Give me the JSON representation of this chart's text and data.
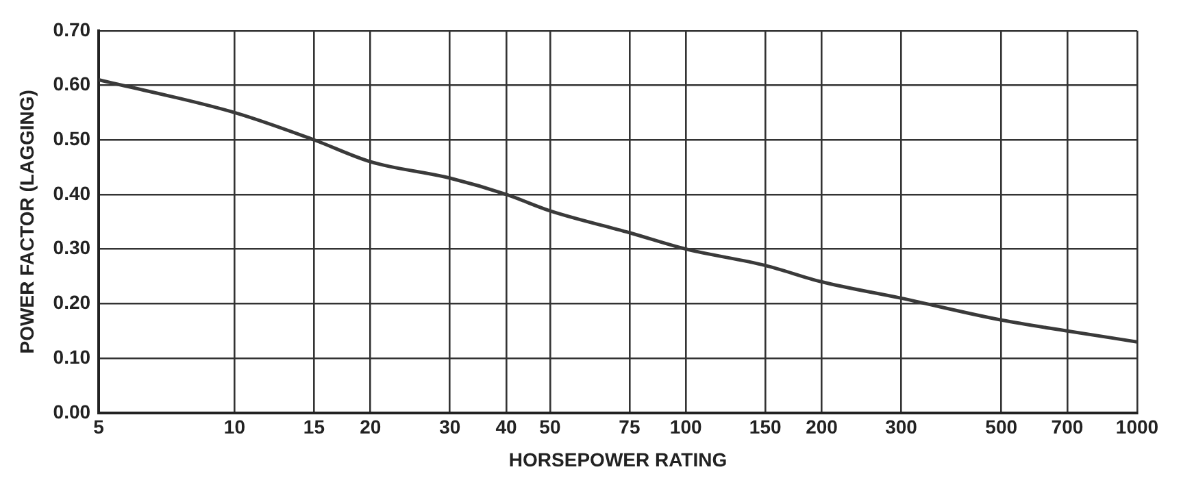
{
  "chart_data": {
    "type": "line",
    "xlabel": "HORSEPOWER RATING",
    "ylabel": "POWER FACTOR (LAGGING)",
    "log": "x",
    "x": [
      5,
      10,
      15,
      20,
      30,
      40,
      50,
      75,
      100,
      150,
      200,
      300,
      500,
      700,
      1000
    ],
    "series": [
      {
        "color": "#3a3a3a",
        "values": [
          0.61,
          0.55,
          0.5,
          0.46,
          0.43,
          0.4,
          0.37,
          0.33,
          0.3,
          0.27,
          0.24,
          0.21,
          0.17,
          0.15,
          0.13
        ]
      }
    ],
    "xlim": [
      5,
      1000
    ],
    "xticks": [
      5,
      10,
      15,
      20,
      30,
      40,
      50,
      75,
      100,
      150,
      200,
      300,
      500,
      700,
      1000
    ],
    "ylim": [
      0,
      0.7
    ],
    "yticks": [
      {
        "value": 0,
        "label": "0.00"
      },
      {
        "value": 0.1,
        "label": "0.10"
      },
      {
        "value": 0.2,
        "label": "0.20"
      },
      {
        "value": 0.3,
        "label": "0.30"
      },
      {
        "value": 0.4,
        "label": "0.40"
      },
      {
        "value": 0.5,
        "label": "0.50"
      },
      {
        "value": 0.6,
        "label": "0.60"
      },
      {
        "value": 0.7,
        "label": "0.70"
      }
    ],
    "grid": true,
    "legend": false,
    "marker": "none",
    "line_style": "solid"
  }
}
